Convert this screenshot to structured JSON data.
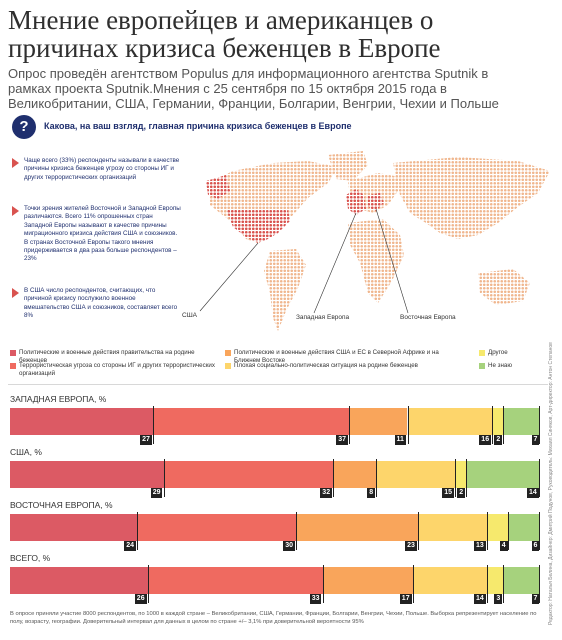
{
  "header": {
    "title": "Мнение европейцев и американцев о причинах кризиса беженцев в Европе",
    "subtitle": "Опрос проведён агентством Populus для информационного агентства Sputnik в рамках проекта Sputnik.Мнения с 25 сентября по 15 октября 2015 года в Великобритании, США, Германии, Франции, Болгарии, Венгрии, Чехии и Польше"
  },
  "question": {
    "icon": "?",
    "text": "Какова, на ваш взгляд, главная причина кризиса беженцев в Европе"
  },
  "notes": [
    "Чаще всего (33%) респонденты называли в качестве причины кризиса беженцев угрозу со стороны ИГ и других террористических организаций",
    "Точки зрения жителей Восточной и Западной Европы различаются. Всего 11% опрошенных стран Западной Европы называют в качестве причины миграционного кризиса действия США и союзников. В странах Восточной Европы такого мнения придерживается в два раза больше респондентов – 23%",
    "В США число респондентов, считающих, что причиной кризису послужило военное вмешательство США и союзников, составляет всего 8%"
  ],
  "map": {
    "labels": {
      "usa": "США",
      "west": "Западная Европа",
      "east": "Восточная Европа"
    },
    "colors": {
      "land": "#f0b78f",
      "highlight": "#d9534f"
    }
  },
  "chart_data": {
    "type": "bar",
    "stacked": true,
    "normalized": true,
    "categories": [
      "ЗАПАДНАЯ ЕВРОПА, %",
      "США, %",
      "ВОСТОЧНАЯ ЕВРОПА, %",
      "ВСЕГО, %"
    ],
    "series": [
      {
        "name": "Политические и военные действия правительства на родине беженцев",
        "color": "#dc5a64",
        "values": [
          27,
          29,
          24,
          26
        ]
      },
      {
        "name": "Террористическая угроза со стороны ИГ и других террористических организаций",
        "color": "#ef6a60",
        "values": [
          37,
          32,
          30,
          33
        ]
      },
      {
        "name": "Политические и военные действия США и ЕС в Северной Африке и на Ближнем Востоке",
        "color": "#f9a55b",
        "values": [
          11,
          8,
          23,
          17
        ]
      },
      {
        "name": "Плохая социально-политическая ситуация на родине беженцев",
        "color": "#fdd56b",
        "values": [
          16,
          15,
          13,
          14
        ]
      },
      {
        "name": "Другое",
        "color": "#f6e96d",
        "values": [
          2,
          2,
          4,
          3
        ]
      },
      {
        "name": "Не знаю",
        "color": "#a6d27d",
        "values": [
          7,
          14,
          6,
          7
        ]
      }
    ]
  },
  "legend_layout": [
    0,
    2,
    4,
    1,
    3,
    5
  ],
  "footnote": "В опросе приняли участие 8000 респондентов, по 1000 в каждой стране – Великобритании, США, Германии, Франции, Болгарии, Венгрии, Чехии, Польше. Выборка репрезентирует население по полу, возрасту, географии. Доверительный интервал для данных в целом по стране +/– 3,1% при доверительной вероятности 95%",
  "credits": "Редактор: Наталья Белина, Дизайнер: Дмитрий Подунов, Руководитель: Михаил Синяков, Арт-директор: Антон Степанов"
}
